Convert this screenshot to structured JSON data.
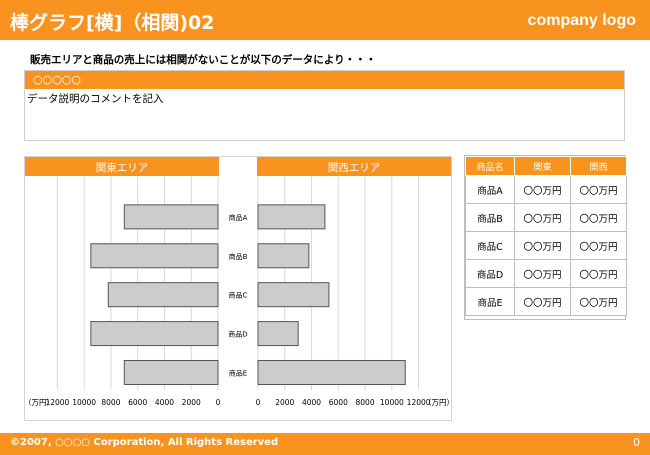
{
  "header": {
    "title": "棒グラフ[横]（相関)02",
    "logo": "company logo"
  },
  "subtitle": "販売エリアと商品の売上には相関がないことが以下のデータにより・・・",
  "comment": {
    "heading": "○○○○○",
    "text": "データ説明のコメントを記入"
  },
  "chart_data": [
    {
      "type": "bar",
      "orientation": "horizontal",
      "title": "関東エリア",
      "categories": [
        "商品A",
        "商品B",
        "商品C",
        "商品D",
        "商品E"
      ],
      "values": [
        7000,
        9500,
        8200,
        9500,
        7000
      ],
      "xlim": [
        0,
        13000
      ],
      "xticks": [
        0,
        2000,
        4000,
        6000,
        8000,
        10000,
        12000
      ],
      "xlabel": "（万円）",
      "reversed": true,
      "grid": true
    },
    {
      "type": "bar",
      "orientation": "horizontal",
      "title": "関西エリア",
      "categories": [
        "商品A",
        "商品B",
        "商品C",
        "商品D",
        "商品E"
      ],
      "values": [
        5000,
        3800,
        5300,
        3000,
        11000
      ],
      "xlim": [
        0,
        13000
      ],
      "xticks": [
        0,
        2000,
        4000,
        6000,
        8000,
        10000,
        12000
      ],
      "xlabel": "（万円）",
      "reversed": false,
      "grid": true
    }
  ],
  "table": {
    "headers": [
      "商品名",
      "関東",
      "関西"
    ],
    "rows": [
      [
        "商品A",
        "〇〇万円",
        "〇〇万円"
      ],
      [
        "商品B",
        "〇〇万円",
        "〇〇万円"
      ],
      [
        "商品C",
        "〇〇万円",
        "〇〇万円"
      ],
      [
        "商品D",
        "〇〇万円",
        "〇〇万円"
      ],
      [
        "商品E",
        "〇〇万円",
        "〇〇万円"
      ]
    ]
  },
  "footer": {
    "copyright": "©2007, ○○○○ Corporation, All Rights Reserved",
    "page": "0"
  },
  "colors": {
    "accent": "#f7931e",
    "bar_fill": "#cccccc",
    "bar_stroke": "#555555",
    "grid": "#d9d9d9"
  }
}
